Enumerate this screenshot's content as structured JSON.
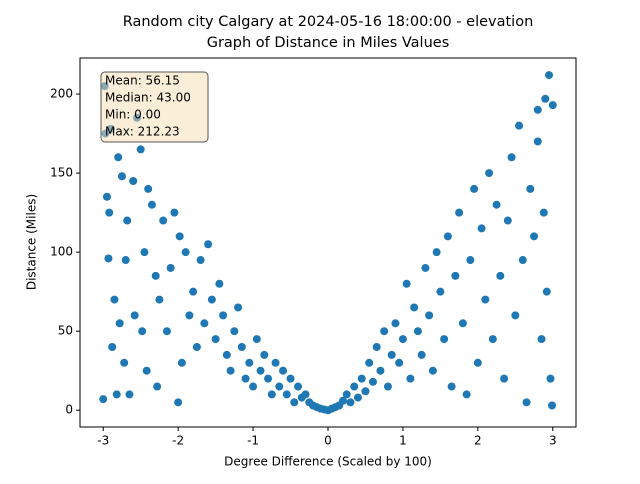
{
  "chart_data": {
    "type": "scatter",
    "title": [
      "Random city Calgary at 2024-05-16 18:00:00  - elevation",
      "Graph of Distance in Miles Values"
    ],
    "x_label": "Degree Difference (Scaled by 100)",
    "y_label": "Distance (Miles)",
    "annotation": [
      "Mean: 56.15",
      "Median: 43.00",
      "Min: 0.00",
      "Max: 212.23"
    ],
    "color": "#1f77b4",
    "xlim": [
      -3.31,
      3.31
    ],
    "ylim": [
      -10.6,
      222.8
    ],
    "xticks": [
      -3,
      -2,
      -1,
      0,
      1,
      2,
      3
    ],
    "yticks": [
      0,
      50,
      100,
      150,
      200
    ],
    "series": [
      {
        "name": "Distance",
        "x": [
          -3.0,
          -2.98,
          -2.95,
          -2.93,
          -2.9,
          -2.88,
          -2.85,
          -2.82,
          -2.8,
          -2.78,
          -2.75,
          -2.72,
          -2.7,
          -2.68,
          -2.65,
          -2.6,
          -2.58,
          -2.55,
          -2.5,
          -2.48,
          -2.45,
          -2.42,
          -2.4,
          -2.35,
          -2.3,
          -2.28,
          -2.25,
          -2.2,
          -2.15,
          -2.1,
          -2.05,
          -2.0,
          -1.98,
          -1.95,
          -1.9,
          -1.85,
          -1.8,
          -1.75,
          -1.7,
          -1.65,
          -1.6,
          -1.55,
          -1.5,
          -1.45,
          -1.4,
          -1.35,
          -1.3,
          -1.25,
          -1.2,
          -1.15,
          -1.1,
          -1.05,
          -1.0,
          -0.95,
          -0.9,
          -0.85,
          -0.8,
          -0.75,
          -0.7,
          -0.65,
          -0.6,
          -0.55,
          -0.5,
          -0.45,
          -0.4,
          -0.35,
          -0.3,
          -0.25,
          -0.2,
          -0.15,
          -0.1,
          -0.05,
          0.0,
          0.05,
          0.1,
          0.15,
          0.2,
          0.25,
          0.3,
          0.35,
          0.4,
          0.45,
          0.5,
          0.55,
          0.6,
          0.65,
          0.7,
          0.75,
          0.8,
          0.85,
          0.9,
          0.95,
          1.0,
          1.05,
          1.1,
          1.15,
          1.2,
          1.25,
          1.3,
          1.35,
          1.4,
          1.45,
          1.5,
          1.55,
          1.6,
          1.65,
          1.7,
          1.75,
          1.8,
          1.85,
          1.9,
          1.95,
          2.0,
          2.05,
          2.1,
          2.15,
          2.2,
          2.25,
          2.3,
          2.35,
          2.4,
          2.45,
          2.5,
          2.55,
          2.6,
          2.65,
          2.7,
          2.75,
          2.8,
          2.85,
          2.88,
          2.9,
          2.92,
          2.95,
          2.97,
          3.0,
          -2.97,
          2.99,
          -2.92,
          2.8
        ],
        "values": [
          7,
          205,
          135,
          96,
          178,
          40,
          70,
          10,
          160,
          55,
          148,
          30,
          95,
          120,
          10,
          145,
          60,
          185,
          165,
          50,
          100,
          25,
          140,
          130,
          85,
          15,
          70,
          120,
          50,
          90,
          125,
          5,
          110,
          30,
          100,
          60,
          75,
          40,
          95,
          55,
          105,
          70,
          45,
          80,
          60,
          35,
          25,
          50,
          65,
          40,
          20,
          30,
          15,
          45,
          25,
          35,
          20,
          10,
          30,
          15,
          25,
          10,
          20,
          5,
          15,
          8,
          10,
          5,
          3,
          2,
          1,
          0.5,
          0,
          1,
          2,
          3,
          6,
          10,
          5,
          15,
          8,
          20,
          12,
          30,
          18,
          40,
          25,
          50,
          15,
          35,
          55,
          30,
          45,
          80,
          20,
          65,
          50,
          35,
          90,
          60,
          25,
          100,
          75,
          45,
          110,
          15,
          85,
          125,
          55,
          10,
          95,
          140,
          30,
          115,
          70,
          150,
          45,
          130,
          85,
          20,
          120,
          160,
          60,
          180,
          95,
          5,
          140,
          110,
          190,
          45,
          125,
          197,
          75,
          212,
          20,
          193,
          175,
          3,
          125,
          170
        ]
      }
    ]
  }
}
